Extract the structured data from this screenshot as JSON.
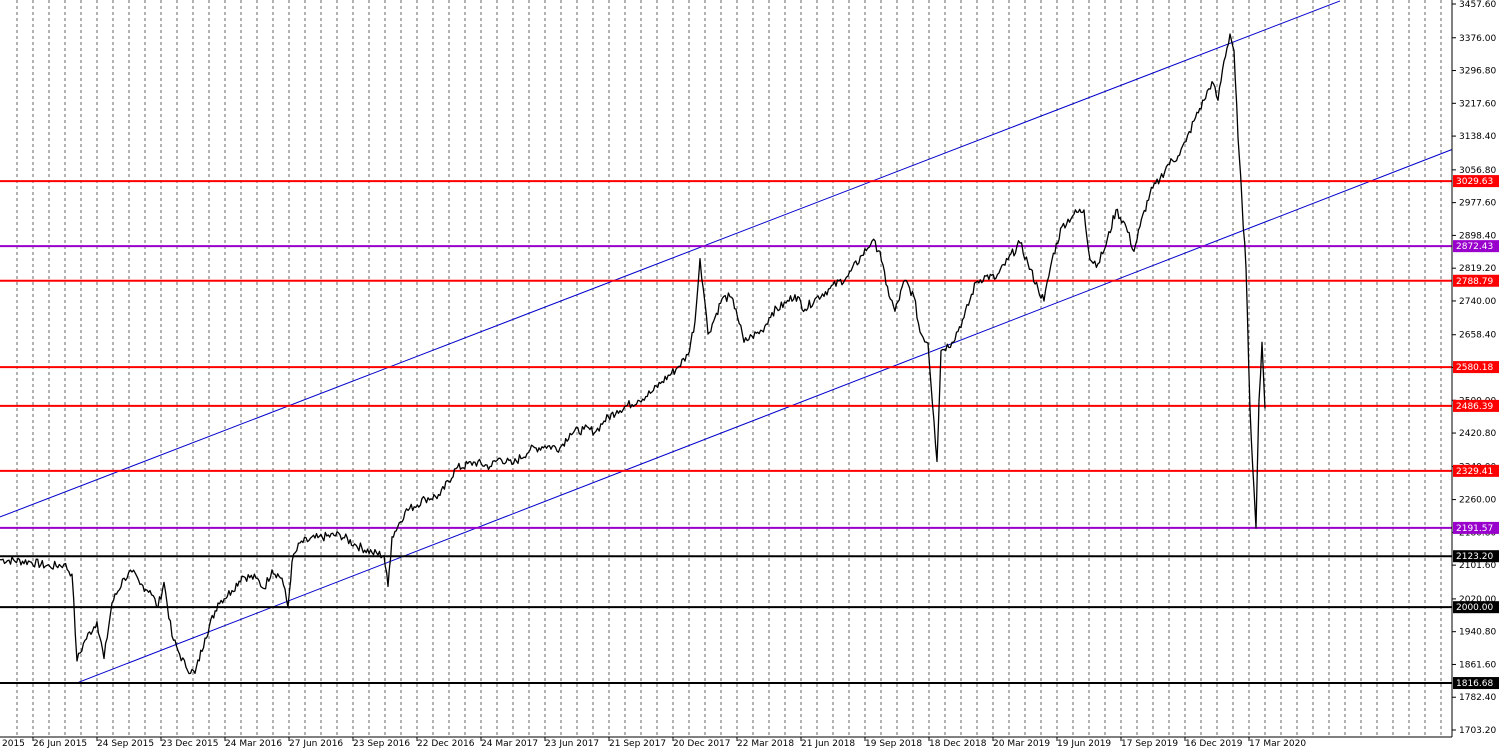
{
  "chart_data": {
    "type": "line",
    "title": "",
    "xlabel": "",
    "ylabel": "",
    "ylim": [
      1703.2,
      3457.6
    ],
    "x_tick_labels": [
      "26 Jun 2015",
      "24 Sep 2015",
      "23 Dec 2015",
      "24 Mar 2016",
      "27 Jun 2016",
      "23 Sep 2016",
      "22 Dec 2016",
      "24 Mar 2017",
      "23 Jun 2017",
      "21 Sep 2017",
      "20 Dec 2017",
      "22 Mar 2018",
      "21 Jun 2018",
      "19 Sep 2018",
      "18 Dec 2018",
      "20 Mar 2019",
      "19 Jun 2019",
      "17 Sep 2019",
      "16 Dec 2019",
      "17 Mar 2020"
    ],
    "x_cut_label": "2015",
    "y_ticks": [
      "3457.60",
      "3376.00",
      "3296.80",
      "3217.60",
      "3138.40",
      "3056.80",
      "2977.60",
      "2898.40",
      "2819.20",
      "2740.00",
      "2658.40",
      "2579.20",
      "2500.00",
      "2420.80",
      "2340.00",
      "2260.00",
      "2180.80",
      "2101.60",
      "2020.00",
      "1940.80",
      "1861.60",
      "1782.40",
      "1703.20"
    ],
    "horizontal_levels": [
      {
        "value": 3029.63,
        "label": "3029.63",
        "color": "#ff0000",
        "tag_color": "#ff0000"
      },
      {
        "value": 2872.43,
        "label": "2872.43",
        "color": "#9900cc",
        "tag_color": "#9900cc"
      },
      {
        "value": 2788.79,
        "label": "2788.79",
        "color": "#ff0000",
        "tag_color": "#ff0000"
      },
      {
        "value": 2580.18,
        "label": "2580.18",
        "color": "#ff0000",
        "tag_color": "#ff0000"
      },
      {
        "value": 2486.39,
        "label": "2486.39",
        "color": "#ff0000",
        "tag_color": "#ff0000"
      },
      {
        "value": 2329.41,
        "label": "2329.41",
        "color": "#ff0000",
        "tag_color": "#ff0000"
      },
      {
        "value": 2191.57,
        "label": "2191.57",
        "color": "#9900cc",
        "tag_color": "#9900cc"
      },
      {
        "value": 2123.2,
        "label": "2123.20",
        "color": "#000000",
        "tag_color": "#000000"
      },
      {
        "value": 2000.0,
        "label": "2000.00",
        "color": "#000000",
        "tag_color": "#000000"
      },
      {
        "value": 1816.68,
        "label": "1816.68",
        "color": "#000000",
        "tag_color": "#000000"
      }
    ],
    "trend_channel": {
      "color": "#0000cc",
      "upper": [
        [
          0,
          2218
        ],
        [
          1340,
          3465
        ]
      ],
      "lower": [
        [
          76,
          1816
        ],
        [
          1452,
          3106
        ]
      ]
    },
    "series": [
      {
        "color": "#000000",
        "points": [
          [
            0,
            2115
          ],
          [
            30,
            2110
          ],
          [
            50,
            2098
          ],
          [
            64,
            2104
          ],
          [
            72,
            2080
          ],
          [
            77,
            1870
          ],
          [
            85,
            1920
          ],
          [
            97,
            1965
          ],
          [
            104,
            1876
          ],
          [
            112,
            2010
          ],
          [
            124,
            2070
          ],
          [
            132,
            2085
          ],
          [
            140,
            2055
          ],
          [
            150,
            2040
          ],
          [
            158,
            2000
          ],
          [
            164,
            2060
          ],
          [
            172,
            1930
          ],
          [
            178,
            1895
          ],
          [
            186,
            1855
          ],
          [
            195,
            1840
          ],
          [
            205,
            1925
          ],
          [
            218,
            2010
          ],
          [
            232,
            2040
          ],
          [
            242,
            2075
          ],
          [
            256,
            2070
          ],
          [
            264,
            2045
          ],
          [
            272,
            2090
          ],
          [
            282,
            2070
          ],
          [
            288,
            2000
          ],
          [
            292,
            2110
          ],
          [
            300,
            2155
          ],
          [
            318,
            2168
          ],
          [
            340,
            2175
          ],
          [
            356,
            2150
          ],
          [
            372,
            2132
          ],
          [
            384,
            2125
          ],
          [
            388,
            2050
          ],
          [
            392,
            2170
          ],
          [
            405,
            2230
          ],
          [
            425,
            2262
          ],
          [
            440,
            2270
          ],
          [
            456,
            2335
          ],
          [
            475,
            2350
          ],
          [
            490,
            2340
          ],
          [
            500,
            2360
          ],
          [
            512,
            2345
          ],
          [
            530,
            2380
          ],
          [
            545,
            2390
          ],
          [
            560,
            2385
          ],
          [
            570,
            2420
          ],
          [
            584,
            2430
          ],
          [
            596,
            2425
          ],
          [
            604,
            2450
          ],
          [
            617,
            2475
          ],
          [
            638,
            2500
          ],
          [
            652,
            2520
          ],
          [
            662,
            2545
          ],
          [
            676,
            2575
          ],
          [
            688,
            2610
          ],
          [
            695,
            2690
          ],
          [
            700,
            2842
          ],
          [
            705,
            2735
          ],
          [
            708,
            2660
          ],
          [
            715,
            2700
          ],
          [
            722,
            2745
          ],
          [
            730,
            2750
          ],
          [
            736,
            2720
          ],
          [
            744,
            2640
          ],
          [
            752,
            2655
          ],
          [
            762,
            2668
          ],
          [
            772,
            2712
          ],
          [
            786,
            2735
          ],
          [
            795,
            2755
          ],
          [
            805,
            2720
          ],
          [
            815,
            2745
          ],
          [
            830,
            2770
          ],
          [
            848,
            2800
          ],
          [
            862,
            2850
          ],
          [
            872,
            2885
          ],
          [
            880,
            2860
          ],
          [
            886,
            2780
          ],
          [
            895,
            2715
          ],
          [
            905,
            2790
          ],
          [
            914,
            2750
          ],
          [
            920,
            2665
          ],
          [
            928,
            2638
          ],
          [
            934,
            2450
          ],
          [
            937,
            2352
          ],
          [
            941,
            2620
          ],
          [
            952,
            2640
          ],
          [
            964,
            2700
          ],
          [
            976,
            2785
          ],
          [
            986,
            2800
          ],
          [
            996,
            2795
          ],
          [
            1008,
            2840
          ],
          [
            1020,
            2880
          ],
          [
            1028,
            2830
          ],
          [
            1038,
            2770
          ],
          [
            1044,
            2740
          ],
          [
            1052,
            2840
          ],
          [
            1062,
            2920
          ],
          [
            1074,
            2950
          ],
          [
            1084,
            2960
          ],
          [
            1090,
            2840
          ],
          [
            1098,
            2830
          ],
          [
            1106,
            2875
          ],
          [
            1116,
            2960
          ],
          [
            1126,
            2920
          ],
          [
            1134,
            2860
          ],
          [
            1140,
            2920
          ],
          [
            1150,
            3000
          ],
          [
            1160,
            3035
          ],
          [
            1168,
            3070
          ],
          [
            1178,
            3090
          ],
          [
            1186,
            3125
          ],
          [
            1194,
            3175
          ],
          [
            1204,
            3225
          ],
          [
            1212,
            3270
          ],
          [
            1218,
            3225
          ],
          [
            1224,
            3320
          ],
          [
            1230,
            3385
          ],
          [
            1234,
            3345
          ],
          [
            1238,
            3135
          ],
          [
            1242,
            2980
          ],
          [
            1246,
            2820
          ],
          [
            1250,
            2480
          ],
          [
            1254,
            2285
          ],
          [
            1256,
            2191
          ],
          [
            1259,
            2500
          ],
          [
            1262,
            2640
          ],
          [
            1265,
            2480
          ]
        ]
      }
    ]
  },
  "colors": {
    "price": "#000000",
    "channel": "#0000cc",
    "grid": "#000000"
  }
}
